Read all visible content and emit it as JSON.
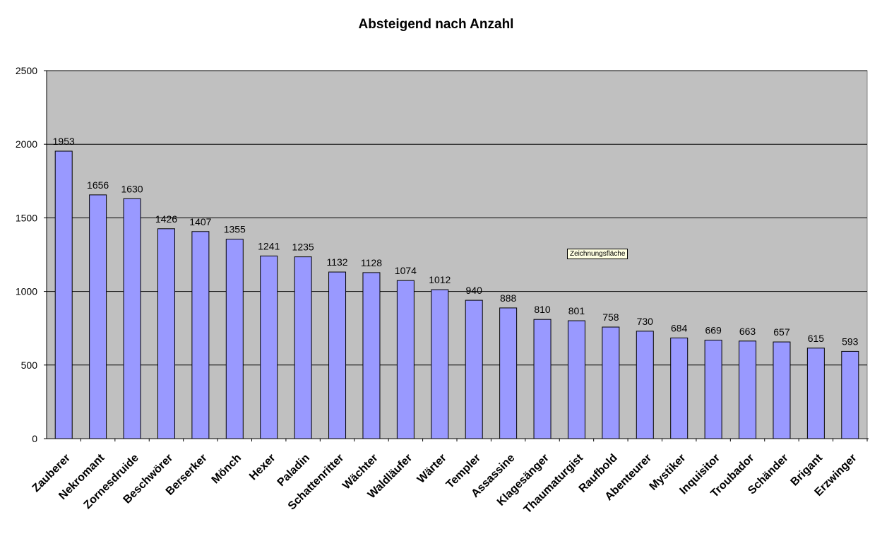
{
  "chart_data": {
    "type": "bar",
    "title": "Absteigend nach Anzahl",
    "xlabel": "",
    "ylabel": "",
    "ylim": [
      0,
      2500
    ],
    "yticks": [
      "0",
      "500",
      "1000",
      "1500",
      "2000",
      "2500"
    ],
    "grid": true,
    "categories": [
      "Zauberer",
      "Nekromant",
      "Zornesdruide",
      "Beschwörer",
      "Berserker",
      "Mönch",
      "Hexer",
      "Paladin",
      "Schattenritter",
      "Wächter",
      "Waldläufer",
      "Wärter",
      "Templer",
      "Assassine",
      "Klagesänger",
      "Thaumaturgist",
      "Raufbold",
      "Abenteurer",
      "Mystiker",
      "Inquisitor",
      "Troubador",
      "Schänder",
      "Brigant",
      "Erzwinger"
    ],
    "values": [
      1953,
      1656,
      1630,
      1426,
      1407,
      1355,
      1241,
      1235,
      1132,
      1128,
      1074,
      1012,
      940,
      888,
      810,
      801,
      758,
      730,
      684,
      669,
      663,
      657,
      615,
      593
    ],
    "colors": {
      "bar": "#9999ff",
      "plot_background": "#c0c0c0",
      "grid": "#000000"
    }
  },
  "tooltip": {
    "label": "Zeichnungsfläche"
  }
}
